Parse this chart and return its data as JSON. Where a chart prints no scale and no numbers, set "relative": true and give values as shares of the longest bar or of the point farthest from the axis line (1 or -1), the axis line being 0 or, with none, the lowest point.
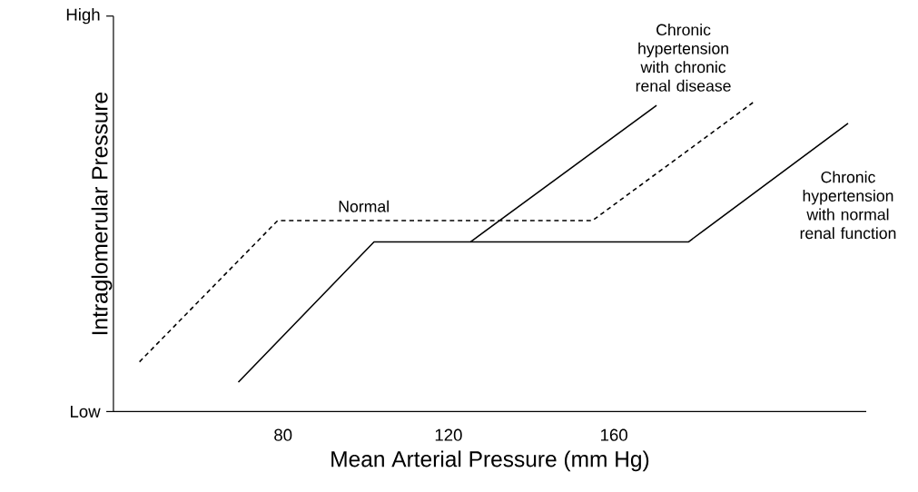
{
  "chart_data": {
    "type": "line",
    "xlabel": "Mean Arterial Pressure (mm Hg)",
    "ylabel": "Intraglomerular Pressure",
    "relative": true,
    "annotations": [
      "Low",
      "High"
    ],
    "xlim": [
      39,
      221
    ],
    "xticks": [
      80,
      120,
      160
    ],
    "series": [
      {
        "name": "Normal",
        "color": "#000000",
        "line_style": "dashed",
        "x": [
          45.3,
          78.7,
          154.8,
          193.6
        ],
        "values": [
          0.161,
          0.618,
          0.618,
          1.0
        ]
      },
      {
        "name": "Chronic hypertension with chronic renal disease",
        "color": "#000000",
        "line_style": "solid",
        "x": [
          125.3,
          170.3
        ],
        "values": [
          0.549,
          0.991
        ]
      },
      {
        "name": "Chronic hypertension with normal renal function",
        "color": "#000000",
        "line_style": "solid",
        "x": [
          69.2,
          102,
          178,
          216.6
        ],
        "values": [
          0.095,
          0.549,
          0.549,
          0.933
        ]
      }
    ]
  }
}
